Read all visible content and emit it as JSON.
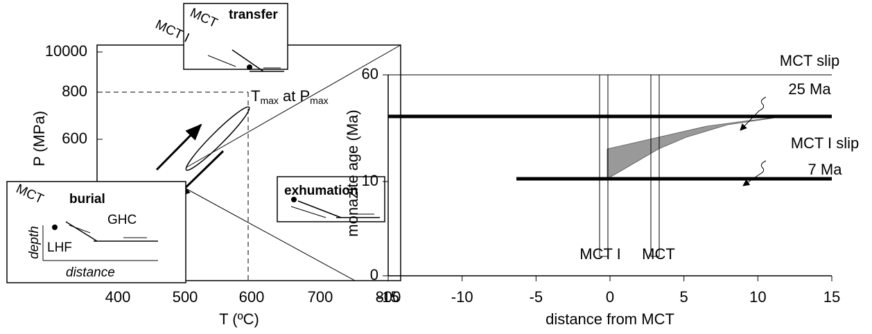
{
  "left_panel": {
    "x_axis_label": "T (ºC)",
    "y_axis_label": "P (MPa)",
    "x_ticks": [
      "400",
      "500",
      "600",
      "700",
      "800"
    ],
    "y_ticks": [
      "10000",
      "800",
      "600"
    ],
    "peak_label": {
      "t": "T",
      "t_sub": "max",
      "at": " at P",
      "p_sub": "max"
    },
    "transfer_inset": {
      "title": "transfer",
      "labels": [
        "MCT",
        "MCT I"
      ]
    },
    "exhumation_inset": {
      "title": "exhumation"
    },
    "burial_inset": {
      "title": "burial",
      "labels": [
        "MCT",
        "GHC",
        "LHF",
        "depth",
        "distance"
      ]
    }
  },
  "right_panel": {
    "x_axis_label": "distance from MCT",
    "y_axis_label": "monazite age (Ma)",
    "x_ticks": [
      "-15",
      "-10",
      "-5",
      "0",
      "5",
      "10",
      "15"
    ],
    "y_ticks": [
      "60",
      "10",
      "0"
    ],
    "annotations": [
      "MCT slip",
      "25 Ma",
      "MCT I slip",
      "7 Ma"
    ],
    "zone_labels": [
      "MCT I",
      "MCT"
    ]
  }
}
